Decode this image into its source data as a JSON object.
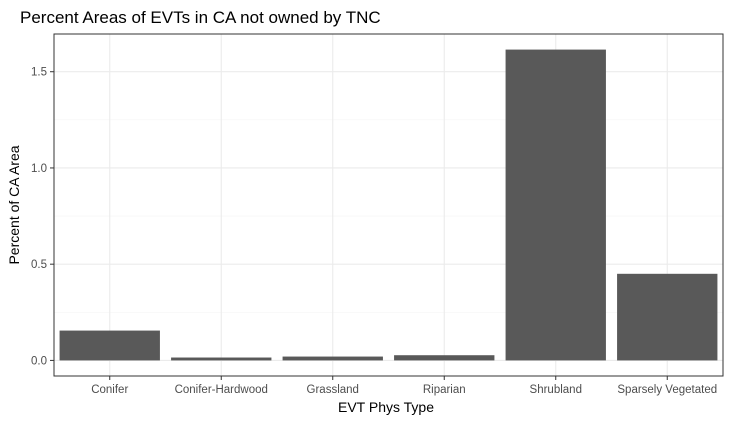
{
  "chart_data": {
    "type": "bar",
    "title": "Percent Areas of EVTs in CA not owned by TNC",
    "xlabel": "EVT Phys Type",
    "ylabel": "Percent of CA Area",
    "categories": [
      "Conifer",
      "Conifer-Hardwood",
      "Grassland",
      "Riparian",
      "Shrubland",
      "Sparsely Vegetated"
    ],
    "values": [
      0.155,
      0.015,
      0.02,
      0.027,
      1.615,
      0.45
    ],
    "ylim": [
      -0.081,
      1.696
    ],
    "yticks": [
      0.0,
      0.5,
      1.0,
      1.5
    ],
    "ytick_labels": [
      "0.0",
      "0.5",
      "1.0",
      "1.5"
    ],
    "grid": true,
    "colors": {
      "bar": "#595959",
      "grid_major": "#ebebeb",
      "grid_minor": "#f5f5f5",
      "panel_border": "#333333",
      "text": "#000000",
      "tick_text": "#4d4d4d"
    }
  }
}
